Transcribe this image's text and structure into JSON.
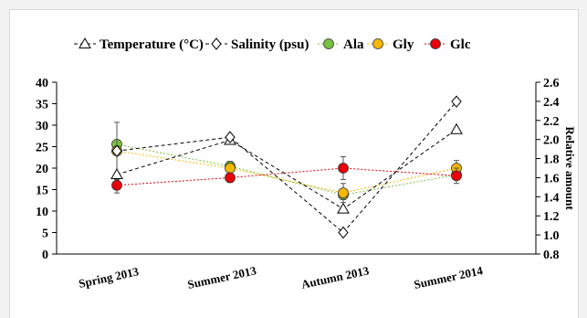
{
  "chart_data": {
    "type": "line",
    "categories": [
      "Spring 2013",
      "Summer 2013",
      "Autumn 2013",
      "Summer 2014"
    ],
    "left_axis": {
      "range": [
        0,
        40
      ],
      "ticks": [
        "0",
        "5",
        "10",
        "15",
        "20",
        "25",
        "30",
        "35",
        "40"
      ]
    },
    "right_axis": {
      "label": "Relative amount",
      "range": [
        0.8,
        2.6
      ],
      "ticks": [
        "0.8",
        "1.0",
        "1.2",
        "1.4",
        "1.6",
        "1.8",
        "2.0",
        "2.2",
        "2.4",
        "2.6"
      ]
    },
    "grid": false,
    "legend_position": "top",
    "series": [
      {
        "name": "Temperature (°C)",
        "axis": "left",
        "values": [
          18.5,
          26.5,
          10.5,
          29
        ],
        "color": "#000000",
        "marker": "triangle",
        "line": "dashed"
      },
      {
        "name": "Salinity (psu)",
        "axis": "left",
        "values": [
          24,
          27.2,
          5,
          35.5
        ],
        "color": "#000000",
        "marker": "diamond",
        "line": "dashed"
      },
      {
        "name": "Ala",
        "axis": "right",
        "values": [
          1.95,
          1.72,
          1.42,
          1.63
        ],
        "errors": [
          0.03,
          0.05,
          0.05,
          0.05
        ],
        "color": "#7ac143",
        "marker": "circle",
        "line": "dotted"
      },
      {
        "name": "Gly",
        "axis": "right",
        "values": [
          1.88,
          1.7,
          1.44,
          1.7
        ],
        "errors": [
          0.3,
          0.05,
          0.1,
          0.08
        ],
        "color": "#f5b800",
        "marker": "circle",
        "line": "dotted"
      },
      {
        "name": "Glc",
        "axis": "right",
        "values": [
          1.52,
          1.6,
          1.7,
          1.62
        ],
        "errors": [
          0.08,
          0.05,
          0.12,
          0.08
        ],
        "color": "#e8000b",
        "marker": "circle",
        "line": "dotted"
      }
    ]
  }
}
